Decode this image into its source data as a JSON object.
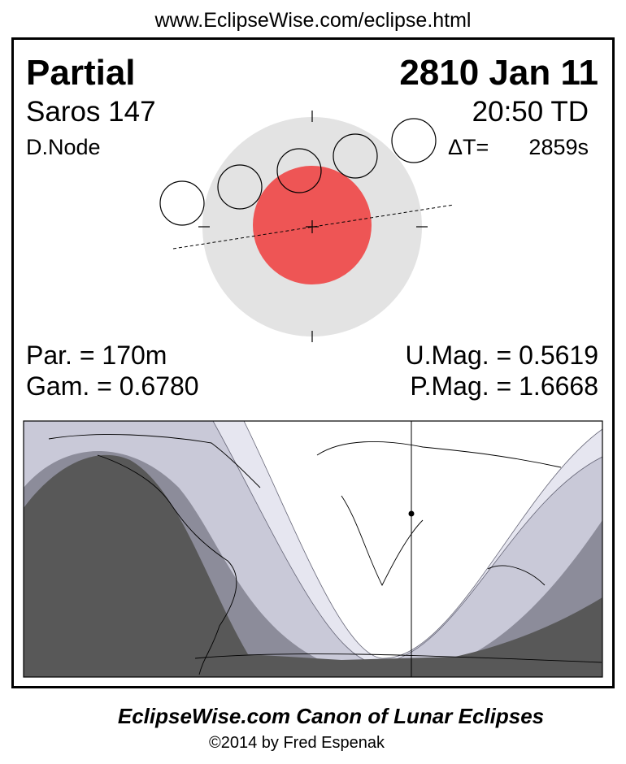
{
  "header": {
    "url": "www.EclipseWise.com/eclipse.html"
  },
  "eclipse": {
    "type": "Partial",
    "date": "2810 Jan 11",
    "saros": "Saros 147",
    "time": "20:50 TD",
    "node": "D.Node",
    "delta_t_label": "ΔT=",
    "delta_t_value": "2859s"
  },
  "parameters": {
    "par": "Par. = 170m",
    "gam": "Gam. = 0.6780",
    "umag": "U.Mag. = 0.5619",
    "pmag": "P.Mag. = 1.6668"
  },
  "footer": {
    "title": "EclipseWise.com Canon of Lunar Eclipses",
    "copyright": "©2014 by Fred Espenak"
  }
}
